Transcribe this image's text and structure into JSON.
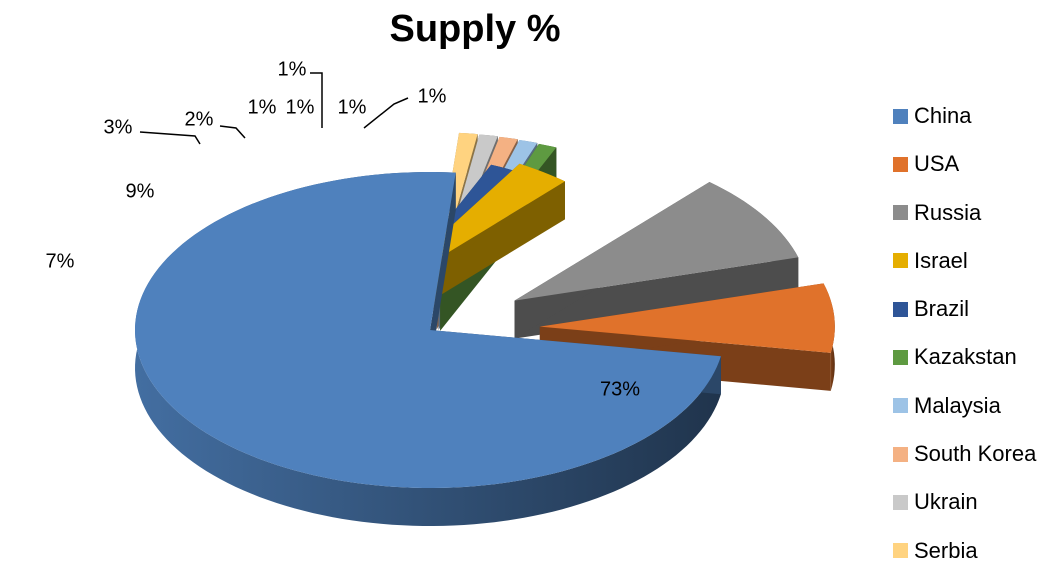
{
  "chart_data": {
    "type": "pie",
    "title": "Supply %",
    "legend_position": "right",
    "style": "3d-exploded",
    "categories": [
      "China",
      "USA",
      "Russia",
      "Israel",
      "Brazil",
      "Kazakstan",
      "Malaysia",
      "South Korea",
      "Ukrain",
      "Serbia"
    ],
    "values": [
      73,
      7,
      9,
      3,
      2,
      1,
      1,
      1,
      1,
      1
    ],
    "labels": [
      "73%",
      "7%",
      "9%",
      "3%",
      "2%",
      "1%",
      "1%",
      "1%",
      "1%",
      "1%"
    ],
    "colors": [
      "#4F81BD",
      "#E0722B",
      "#8C8C8C",
      "#E5AE00",
      "#2E5597",
      "#5E9A41",
      "#9DC3E6",
      "#F4B183",
      "#C9C9C9",
      "#FFD380"
    ]
  }
}
